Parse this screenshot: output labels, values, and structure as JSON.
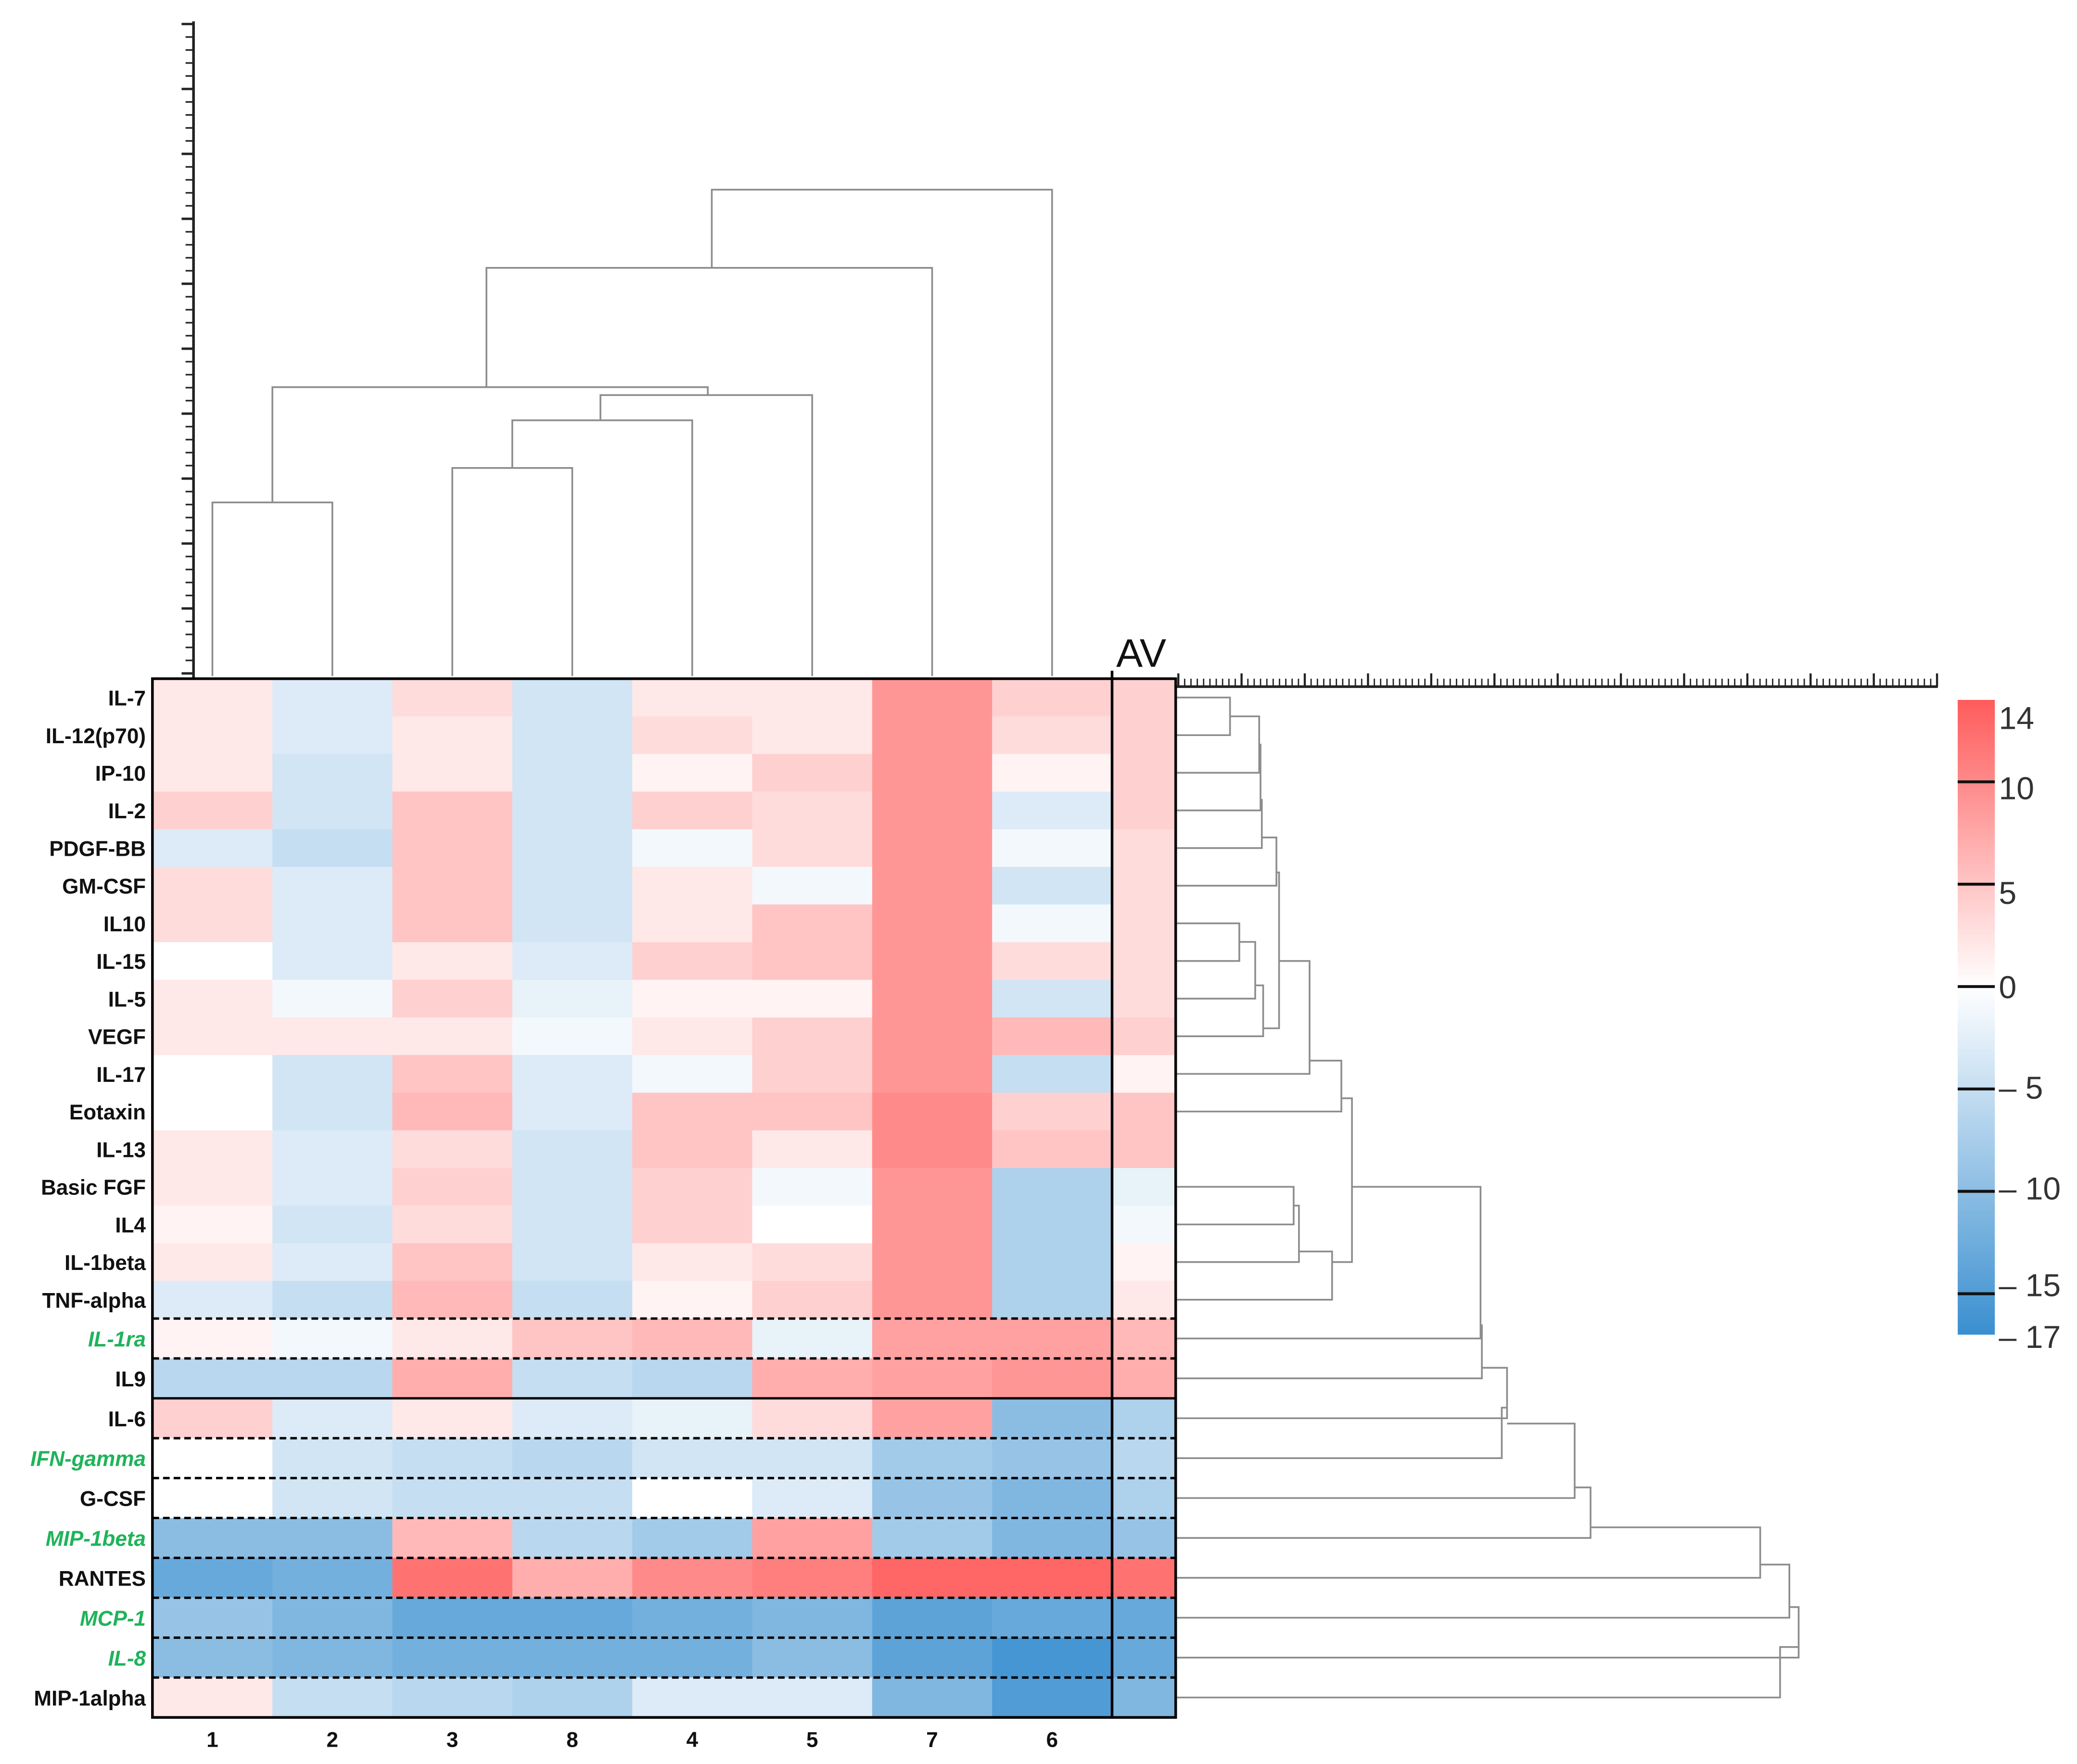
{
  "chart_data": {
    "type": "heatmap",
    "columns": [
      "1",
      "2",
      "3",
      "8",
      "4",
      "5",
      "7",
      "6"
    ],
    "avg_column_label": "AV",
    "rows": [
      {
        "label": "IL-7",
        "highlight": false,
        "values": [
          2,
          -3,
          3,
          -4,
          2,
          2,
          9,
          4
        ],
        "av": 4
      },
      {
        "label": "IL-12(p70)",
        "highlight": false,
        "values": [
          2,
          -3,
          2,
          -4,
          3,
          2,
          9,
          3
        ],
        "av": 4
      },
      {
        "label": "IP-10",
        "highlight": false,
        "values": [
          2,
          -4,
          2,
          -4,
          1,
          4,
          9,
          1
        ],
        "av": 4
      },
      {
        "label": "IL-2",
        "highlight": false,
        "values": [
          4,
          -4,
          5,
          -4,
          4,
          3,
          9,
          -3
        ],
        "av": 4
      },
      {
        "label": "PDGF-BB",
        "highlight": false,
        "values": [
          -3,
          -5,
          5,
          -4,
          -1,
          3,
          9,
          -1
        ],
        "av": 3
      },
      {
        "label": "GM-CSF",
        "highlight": false,
        "values": [
          3,
          -3,
          5,
          -4,
          2,
          -1,
          9,
          -4
        ],
        "av": 3
      },
      {
        "label": "IL10",
        "highlight": false,
        "values": [
          3,
          -3,
          5,
          -4,
          2,
          5,
          9,
          -1
        ],
        "av": 3
      },
      {
        "label": "IL-15",
        "highlight": false,
        "values": [
          0,
          -3,
          2,
          -3,
          4,
          5,
          9,
          3
        ],
        "av": 3
      },
      {
        "label": "IL-5",
        "highlight": false,
        "values": [
          2,
          -1,
          4,
          -2,
          1,
          1,
          9,
          -4
        ],
        "av": 3
      },
      {
        "label": "VEGF",
        "highlight": false,
        "values": [
          2,
          2,
          2,
          -1,
          2,
          4,
          9,
          6
        ],
        "av": 4
      },
      {
        "label": "IL-17",
        "highlight": false,
        "values": [
          0,
          -4,
          5,
          -3,
          -1,
          4,
          9,
          -5
        ],
        "av": 1
      },
      {
        "label": "Eotaxin",
        "highlight": false,
        "values": [
          0,
          -4,
          6,
          -3,
          5,
          5,
          10,
          4
        ],
        "av": 5
      },
      {
        "label": "IL-13",
        "highlight": false,
        "values": [
          2,
          -3,
          3,
          -4,
          5,
          2,
          10,
          5
        ],
        "av": 5
      },
      {
        "label": "Basic FGF",
        "highlight": false,
        "values": [
          2,
          -3,
          4,
          -4,
          4,
          -1,
          9,
          -7
        ],
        "av": -2
      },
      {
        "label": "IL4",
        "highlight": false,
        "values": [
          1,
          -4,
          3,
          -4,
          4,
          0,
          9,
          -7
        ],
        "av": -1
      },
      {
        "label": "IL-1beta",
        "highlight": false,
        "values": [
          2,
          -3,
          5,
          -4,
          2,
          3,
          9,
          -7
        ],
        "av": 1
      },
      {
        "label": "TNF-alpha",
        "highlight": false,
        "values": [
          -3,
          -5,
          6,
          -5,
          1,
          4,
          9,
          -7
        ],
        "av": 2
      },
      {
        "label": "IL-1ra",
        "highlight": true,
        "values": [
          1,
          -1,
          2,
          5,
          6,
          -2,
          8,
          8
        ],
        "av": 6
      },
      {
        "label": "IL9",
        "highlight": false,
        "values": [
          -6,
          -6,
          7,
          -5,
          -6,
          7,
          8,
          9
        ],
        "av": 7
      },
      {
        "label": "IL-6",
        "highlight": false,
        "values": [
          4,
          -3,
          2,
          -3,
          -2,
          3,
          8,
          -10
        ],
        "av": -7
      },
      {
        "label": "IFN-gamma",
        "highlight": true,
        "values": [
          0,
          -4,
          -5,
          -6,
          -4,
          -4,
          -8,
          -9
        ],
        "av": -6
      },
      {
        "label": "G-CSF",
        "highlight": false,
        "values": [
          0,
          -4,
          -5,
          -5,
          0,
          -3,
          -9,
          -11
        ],
        "av": -7
      },
      {
        "label": "MIP-1beta",
        "highlight": true,
        "values": [
          -10,
          -10,
          6,
          -6,
          -8,
          8,
          -8,
          -11
        ],
        "av": -9
      },
      {
        "label": "RANTES",
        "highlight": false,
        "values": [
          -13,
          -12,
          12,
          7,
          10,
          11,
          13,
          13
        ],
        "av": 12
      },
      {
        "label": "MCP-1",
        "highlight": true,
        "values": [
          -9,
          -11,
          -13,
          -13,
          -12,
          -11,
          -14,
          -13
        ],
        "av": -13
      },
      {
        "label": "IL-8",
        "highlight": true,
        "values": [
          -10,
          -11,
          -12,
          -12,
          -12,
          -10,
          -14,
          -16
        ],
        "av": -13
      },
      {
        "label": "MIP-1alpha",
        "highlight": false,
        "values": [
          2,
          -5,
          -6,
          -7,
          -3,
          -3,
          -11,
          -15
        ],
        "av": -11
      }
    ],
    "colorbar": {
      "min": -17,
      "max": 14,
      "ticks": [
        14,
        10,
        5,
        0,
        -5,
        -10,
        -15,
        -17
      ],
      "tick_labels": [
        "14",
        "10",
        "5",
        "0",
        "– 5",
        "– 10",
        "– 15",
        "– 17"
      ]
    },
    "colors": {
      "low": "#3a8fd0",
      "mid": "#ffffff",
      "high": "#ff5b5b",
      "highlight_label": "#1fb35a"
    }
  }
}
